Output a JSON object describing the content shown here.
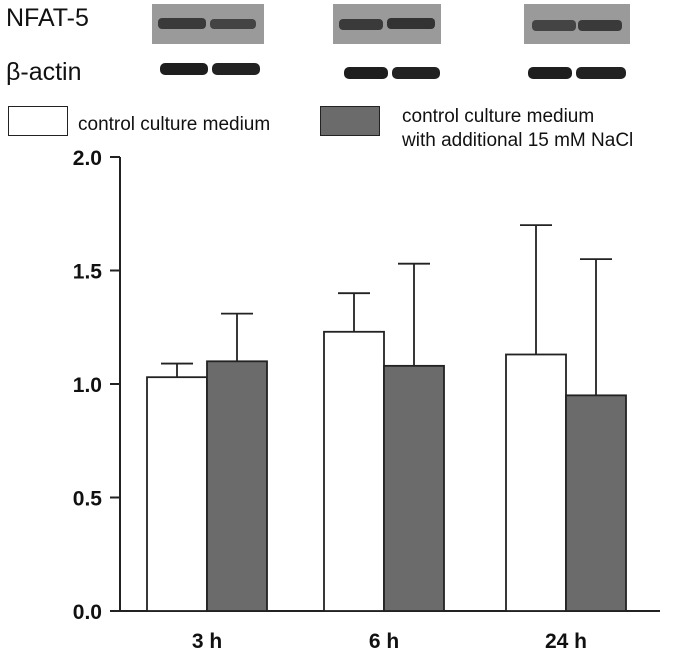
{
  "blots": {
    "rows": [
      {
        "label": "NFAT-5",
        "tone": "#3a3a3a"
      },
      {
        "label": "β-actin",
        "tone": "#1e1e1e"
      }
    ]
  },
  "legend": {
    "items": [
      {
        "label_lines": [
          "control culture medium"
        ],
        "fill": "#ffffff"
      },
      {
        "label_lines": [
          "control culture medium",
          "with additional 15 mM NaCl"
        ],
        "fill": "#6b6b6b"
      }
    ]
  },
  "chart_data": {
    "type": "bar",
    "title": "",
    "xlabel": "",
    "ylabel": "",
    "categories": [
      "3 h",
      "6 h",
      "24 h"
    ],
    "series": [
      {
        "name": "control culture medium",
        "values": [
          1.03,
          1.23,
          1.13
        ],
        "errors": [
          0.06,
          0.17,
          0.57
        ],
        "color": "#ffffff"
      },
      {
        "name": "control culture medium with additional 15 mM NaCl",
        "values": [
          1.1,
          1.08,
          0.95
        ],
        "errors": [
          0.21,
          0.45,
          0.6
        ],
        "color": "#6b6b6b"
      }
    ],
    "ylim": [
      0,
      2.0
    ],
    "yticks": [
      "0.0",
      "0.5",
      "1.0",
      "1.5",
      "2.0"
    ],
    "grid": false,
    "legend": "top"
  }
}
